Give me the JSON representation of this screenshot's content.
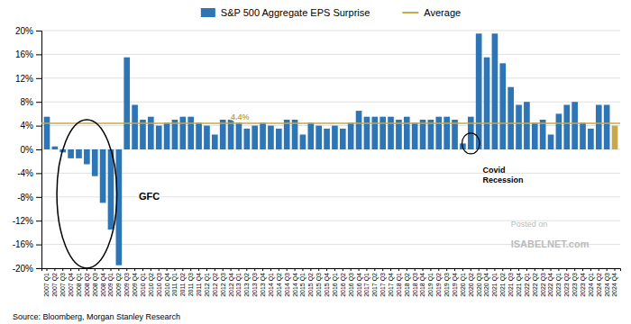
{
  "chart_data": {
    "type": "bar",
    "categories": [
      "2007 Q1",
      "2007 Q2",
      "2007 Q3",
      "2007 Q4",
      "2008 Q1",
      "2008 Q2",
      "2008 Q3",
      "2008 Q4",
      "2009 Q1",
      "2009 Q2",
      "2009 Q3",
      "2009 Q4",
      "2010 Q1",
      "2010 Q2",
      "2010 Q3",
      "2010 Q4",
      "2011 Q1",
      "2011 Q2",
      "2011 Q3",
      "2011 Q4",
      "2012 Q1",
      "2012 Q2",
      "2012 Q3",
      "2012 Q4",
      "2013 Q1",
      "2013 Q2",
      "2013 Q3",
      "2013 Q4",
      "2014 Q1",
      "2014 Q2",
      "2014 Q3",
      "2014 Q4",
      "2015 Q1",
      "2015 Q2",
      "2015 Q3",
      "2015 Q4",
      "2016 Q1",
      "2016 Q2",
      "2016 Q3",
      "2016 Q4",
      "2017 Q1",
      "2017 Q2",
      "2017 Q3",
      "2017 Q4",
      "2018 Q1",
      "2018 Q2",
      "2018 Q3",
      "2018 Q4",
      "2019 Q1",
      "2019 Q2",
      "2019 Q3",
      "2019 Q4",
      "2020 Q1",
      "2020 Q2",
      "2020 Q3",
      "2020 Q4",
      "2021 Q1",
      "2021 Q2",
      "2021 Q3",
      "2021 Q4",
      "2022 Q1",
      "2022 Q2",
      "2022 Q3",
      "2022 Q4",
      "2023 Q1",
      "2023 Q2",
      "2023 Q3",
      "2023 Q4",
      "2024 Q1",
      "2024 Q2",
      "2024 Q3",
      "2024 Q4"
    ],
    "series": [
      {
        "name": "S&P 500 Aggregate EPS Surprise",
        "color": "#2E75B6",
        "colors": [
          "#2E75B6",
          "#2E75B6",
          "#2E75B6",
          "#2E75B6",
          "#2E75B6",
          "#2E75B6",
          "#2E75B6",
          "#2E75B6",
          "#2E75B6",
          "#2E75B6",
          "#2E75B6",
          "#2E75B6",
          "#2E75B6",
          "#2E75B6",
          "#2E75B6",
          "#2E75B6",
          "#2E75B6",
          "#2E75B6",
          "#2E75B6",
          "#2E75B6",
          "#2E75B6",
          "#2E75B6",
          "#2E75B6",
          "#2E75B6",
          "#2E75B6",
          "#2E75B6",
          "#2E75B6",
          "#2E75B6",
          "#2E75B6",
          "#2E75B6",
          "#2E75B6",
          "#2E75B6",
          "#2E75B6",
          "#2E75B6",
          "#2E75B6",
          "#2E75B6",
          "#2E75B6",
          "#2E75B6",
          "#2E75B6",
          "#2E75B6",
          "#2E75B6",
          "#2E75B6",
          "#2E75B6",
          "#2E75B6",
          "#2E75B6",
          "#2E75B6",
          "#2E75B6",
          "#2E75B6",
          "#2E75B6",
          "#2E75B6",
          "#2E75B6",
          "#2E75B6",
          "#2E75B6",
          "#2E75B6",
          "#2E75B6",
          "#2E75B6",
          "#2E75B6",
          "#2E75B6",
          "#2E75B6",
          "#2E75B6",
          "#2E75B6",
          "#2E75B6",
          "#2E75B6",
          "#2E75B6",
          "#2E75B6",
          "#2E75B6",
          "#2E75B6",
          "#2E75B6",
          "#2E75B6",
          "#2E75B6",
          "#2E75B6",
          "#C8A84B"
        ],
        "values": [
          5.5,
          0.5,
          -0.5,
          -1.5,
          -1.5,
          -2.5,
          -4.5,
          -9.0,
          -13.5,
          -19.5,
          15.5,
          7.5,
          5.0,
          5.5,
          4.0,
          4.5,
          5.0,
          5.5,
          5.5,
          4.5,
          4.0,
          2.5,
          5.0,
          5.0,
          4.5,
          3.5,
          4.0,
          4.5,
          4.0,
          3.5,
          5.0,
          5.0,
          2.5,
          4.5,
          4.0,
          3.5,
          4.0,
          3.5,
          4.5,
          6.5,
          5.5,
          5.5,
          5.5,
          5.5,
          5.0,
          5.5,
          4.5,
          5.0,
          5.0,
          5.5,
          5.5,
          5.0,
          1.0,
          5.5,
          19.5,
          15.5,
          19.5,
          14.5,
          10.5,
          7.5,
          8.0,
          4.5,
          5.0,
          2.5,
          6.0,
          7.5,
          8.0,
          4.5,
          3.5,
          7.5,
          7.5,
          4.0
        ]
      }
    ],
    "average": {
      "name": "Average",
      "value": 4.4,
      "label": "4.4%",
      "color": "#C8A84B"
    },
    "annotations": [
      {
        "text": "GFC"
      },
      {
        "text": "Covid\nRecession"
      }
    ],
    "source": "Source: Bloomberg, Morgan Stanley Research",
    "watermark": [
      "Posted on",
      "ISABELNET.com"
    ],
    "ylim": [
      -20,
      20
    ],
    "yticks": [
      {
        "value": -20,
        "label": "-20%"
      },
      {
        "value": -16,
        "label": "-16%"
      },
      {
        "value": -12,
        "label": "-12%"
      },
      {
        "value": -8,
        "label": "-8%"
      },
      {
        "value": -4,
        "label": "-4%"
      },
      {
        "value": 0,
        "label": "0%"
      },
      {
        "value": 4,
        "label": "4%"
      },
      {
        "value": 8,
        "label": "8%"
      },
      {
        "value": 12,
        "label": "12%"
      },
      {
        "value": 16,
        "label": "16%"
      },
      {
        "value": 20,
        "label": "20%"
      }
    ],
    "grid": true,
    "legend": "top"
  }
}
